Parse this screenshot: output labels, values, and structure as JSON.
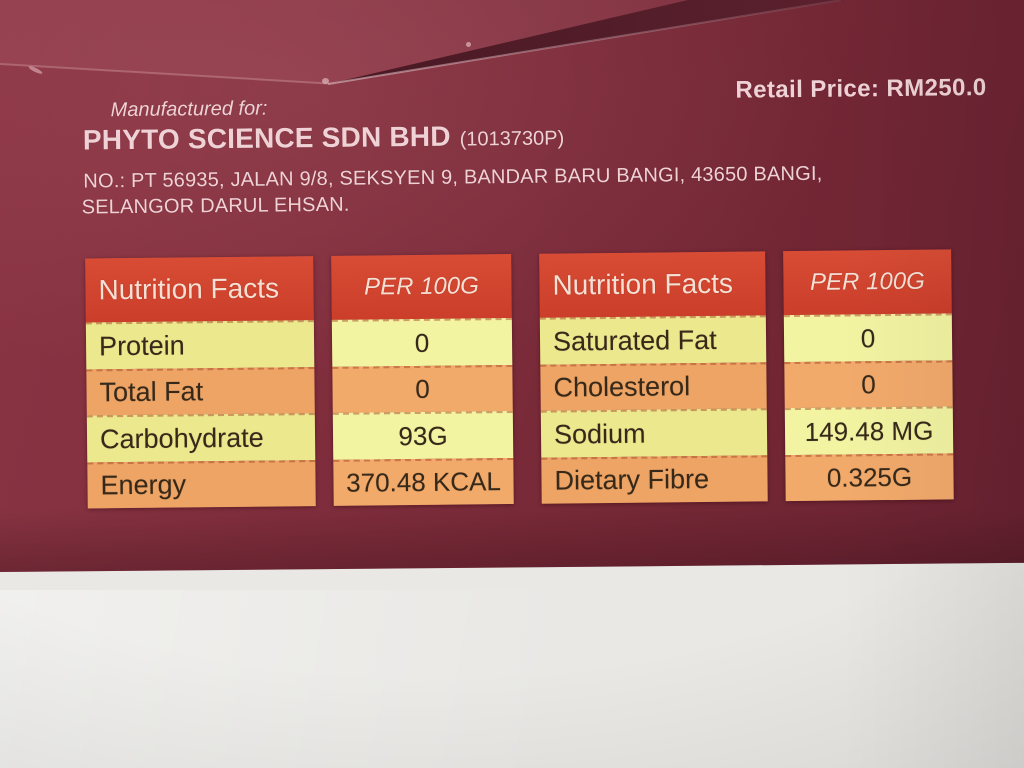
{
  "package": {
    "retail_price": "Retail Price: RM250.0",
    "manufactured_for": "Manufactured for:",
    "company": {
      "name": "PHYTO SCIENCE SDN BHD",
      "registration": "(1013730P)"
    },
    "address_line1": "NO.: PT 56935, JALAN 9/8, SEKSYEN 9, BANDAR BARU BANGI, 43650 BANGI,",
    "address_line2": "SELANGOR DARUL EHSAN.",
    "tables": [
      {
        "header_label": "Nutrition Facts",
        "header_value": "PER 100G",
        "rows": [
          {
            "label": "Protein",
            "value": "0"
          },
          {
            "label": "Total Fat",
            "value": "0"
          },
          {
            "label": "Carbohydrate",
            "value": "93G"
          },
          {
            "label": "Energy",
            "value": "370.48 KCAL"
          }
        ]
      },
      {
        "header_label": "Nutrition Facts",
        "header_value": "PER 100G",
        "rows": [
          {
            "label": "Saturated Fat",
            "value": "0"
          },
          {
            "label": "Cholesterol",
            "value": "0"
          },
          {
            "label": "Sodium",
            "value": "149.48 MG"
          },
          {
            "label": "Dietary Fibre",
            "value": "0.325G"
          }
        ]
      }
    ],
    "colors": {
      "package_maroon": "#7c2b3a",
      "package_fold_shadow": "#46161f",
      "table_header_red": "#d2452f",
      "row_yellow": "#ece88e",
      "row_yellow_bright": "#f2f4a2",
      "row_orange": "#eda465",
      "row_orange_bright": "#f2aa6b",
      "printed_text_pink": "#eed2d6",
      "table_text_dark": "#37291a",
      "counter_surface": "#eae9e6"
    }
  }
}
